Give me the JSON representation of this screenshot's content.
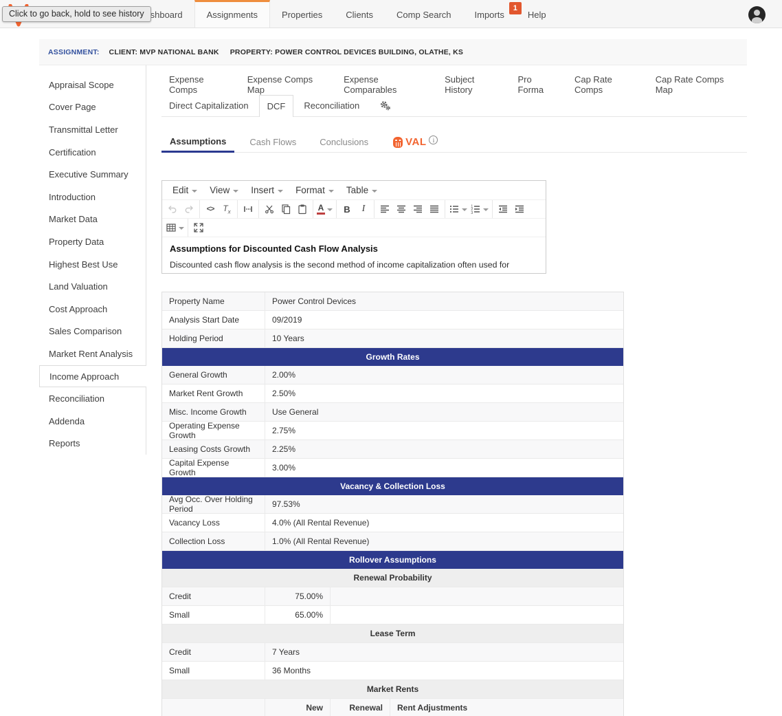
{
  "tooltip": "Click to go back, hold to see history",
  "navbar": {
    "tabs": [
      {
        "label": "Dashboard"
      },
      {
        "label": "Assignments",
        "active": true
      },
      {
        "label": "Properties"
      },
      {
        "label": "Clients"
      },
      {
        "label": "Comp Search"
      },
      {
        "label": "Imports",
        "badge": "1"
      },
      {
        "label": "Help"
      }
    ]
  },
  "assignment_bar": {
    "label": "ASSIGNMENT:",
    "client": "CLIENT: MVP NATIONAL BANK",
    "property": "PROPERTY: POWER CONTROL DEVICES BUILDING, OLATHE, KS"
  },
  "sidebar": {
    "items": [
      {
        "label": "Appraisal Scope"
      },
      {
        "label": "Cover Page"
      },
      {
        "label": "Transmittal Letter"
      },
      {
        "label": "Certification"
      },
      {
        "label": "Executive Summary"
      },
      {
        "label": "Introduction"
      },
      {
        "label": "Market Data"
      },
      {
        "label": "Property Data"
      },
      {
        "label": "Highest Best Use"
      },
      {
        "label": "Land Valuation"
      },
      {
        "label": "Cost Approach"
      },
      {
        "label": "Sales Comparison"
      },
      {
        "label": "Market Rent Analysis"
      },
      {
        "label": "Income Approach",
        "selected": true
      },
      {
        "label": "Reconciliation"
      },
      {
        "label": "Addenda"
      },
      {
        "label": "Reports"
      }
    ]
  },
  "content_tabs": {
    "row1": [
      {
        "label": "Expense Comps"
      },
      {
        "label": "Expense Comps Map"
      },
      {
        "label": "Expense Comparables"
      },
      {
        "label": "Subject History"
      },
      {
        "label": "Pro Forma"
      },
      {
        "label": "Cap Rate Comps"
      },
      {
        "label": "Cap Rate Comps Map"
      }
    ],
    "row2": [
      {
        "label": "Direct Capitalization"
      },
      {
        "label": "DCF",
        "active": true
      },
      {
        "label": "Reconciliation"
      }
    ]
  },
  "subtabs": [
    {
      "label": "Assumptions",
      "active": true
    },
    {
      "label": "Cash Flows"
    },
    {
      "label": "Conclusions"
    }
  ],
  "val_widget": {
    "label": "VAL",
    "info": "i"
  },
  "editor": {
    "menus": [
      "Edit",
      "View",
      "Insert",
      "Format",
      "Table"
    ],
    "glyphs": {
      "code": "<>",
      "removeformat_t": "T",
      "removeformat_x": "x",
      "forecolor": "A",
      "bold": "B",
      "italic": "I"
    },
    "heading": "Assumptions for Discounted Cash Flow Analysis",
    "body": "Discounted cash flow analysis is the second method of income capitalization often used for income-producing properties.  It is most commonly used for multi-tenant properties, where both existing leases and market lease terms must be considered or in properties"
  },
  "assumptions_table": {
    "rows": [
      {
        "type": "kv",
        "label": "Property Name",
        "value": "Power Control Devices"
      },
      {
        "type": "kv",
        "label": "Analysis Start Date",
        "value": "09/2019"
      },
      {
        "type": "kv",
        "label": "Holding Period",
        "value": "10 Years"
      },
      {
        "type": "section",
        "label": "Growth Rates"
      },
      {
        "type": "kv",
        "label": "General Growth",
        "value": "2.00%"
      },
      {
        "type": "kv",
        "label": "Market Rent Growth",
        "value": "2.50%"
      },
      {
        "type": "kv",
        "label": "Misc. Income Growth",
        "value": "Use General"
      },
      {
        "type": "kv",
        "label": "Operating Expense Growth",
        "value": "2.75%"
      },
      {
        "type": "kv",
        "label": "Leasing Costs Growth",
        "value": "2.25%"
      },
      {
        "type": "kv",
        "label": "Capital Expense Growth",
        "value": "3.00%"
      },
      {
        "type": "section",
        "label": "Vacancy & Collection Loss"
      },
      {
        "type": "kv",
        "label": "Avg Occ. Over Holding Period",
        "value": "97.53%"
      },
      {
        "type": "kv",
        "label": "Vacancy Loss",
        "value": "4.0% (All Rental Revenue)"
      },
      {
        "type": "kv",
        "label": "Collection Loss",
        "value": "1.0% (All Rental Revenue)"
      },
      {
        "type": "section",
        "label": "Rollover Assumptions"
      },
      {
        "type": "subsection",
        "label": "Renewal Probability"
      },
      {
        "type": "kv3",
        "label": "Credit",
        "value": "75.00%"
      },
      {
        "type": "kv3",
        "label": "Small",
        "value": "65.00%"
      },
      {
        "type": "subsection",
        "label": "Lease Term"
      },
      {
        "type": "kv",
        "label": "Credit",
        "value": "7 Years"
      },
      {
        "type": "kv",
        "label": "Small",
        "value": "36 Months"
      },
      {
        "type": "subsection",
        "label": "Market Rents"
      },
      {
        "type": "cols4",
        "c1": "",
        "c2": "New",
        "c3": "Renewal",
        "c4": "Rent Adjustments"
      }
    ]
  },
  "colors": {
    "accent_navy": "#2d3a8d",
    "accent_orange": "#ef8e3f",
    "badge_red": "#e2572e",
    "val_orange": "#f26430",
    "assignment_blue": "#33519e"
  }
}
